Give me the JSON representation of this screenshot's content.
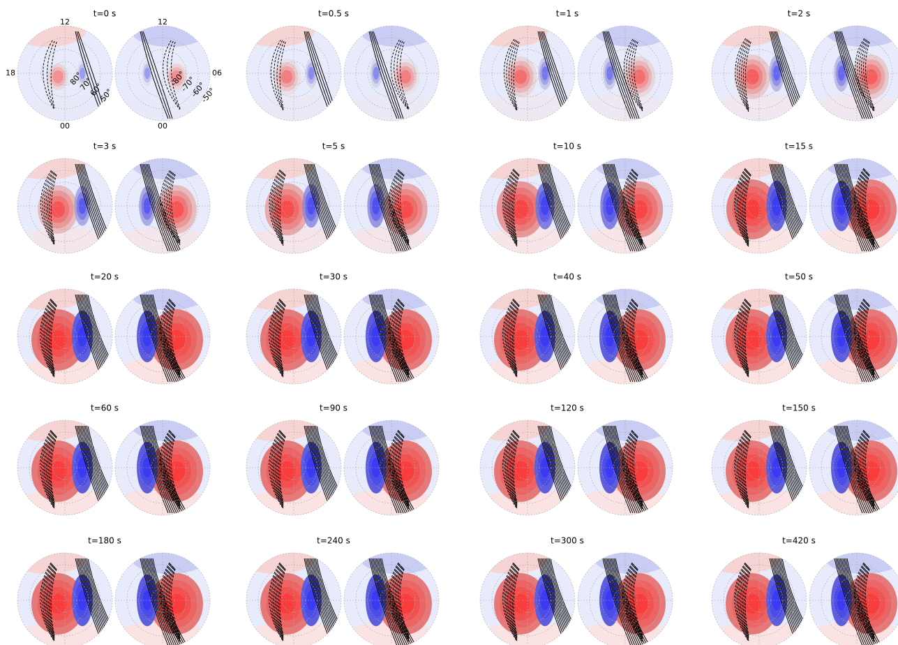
{
  "panels": [
    {
      "title": "t=0 s"
    },
    {
      "title": "t=0.5 s"
    },
    {
      "title": "t=1 s"
    },
    {
      "title": "t=2 s"
    },
    {
      "title": "t=3 s"
    },
    {
      "title": "t=5 s"
    },
    {
      "title": "t=10 s"
    },
    {
      "title": "t=15 s"
    },
    {
      "title": "t=20 s"
    },
    {
      "title": "t=30 s"
    },
    {
      "title": "t=40 s"
    },
    {
      "title": "t=50 s"
    },
    {
      "title": "t=60 s"
    },
    {
      "title": "t=90 s"
    },
    {
      "title": "t=120 s"
    },
    {
      "title": "t=150 s"
    },
    {
      "title": "t=180 s"
    },
    {
      "title": "t=240 s"
    },
    {
      "title": "t=300 s"
    },
    {
      "title": "t=420 s"
    }
  ],
  "labels": {
    "north": {
      "noon": "12",
      "dusk": "18",
      "midnight": "00",
      "lats": [
        "80°",
        "70°",
        "60°",
        "50°"
      ]
    },
    "south": {
      "noon": "12",
      "dawn": "06",
      "midnight": "00",
      "lats": [
        "-80°",
        "-70°",
        "-60°",
        "-50°"
      ]
    }
  }
}
